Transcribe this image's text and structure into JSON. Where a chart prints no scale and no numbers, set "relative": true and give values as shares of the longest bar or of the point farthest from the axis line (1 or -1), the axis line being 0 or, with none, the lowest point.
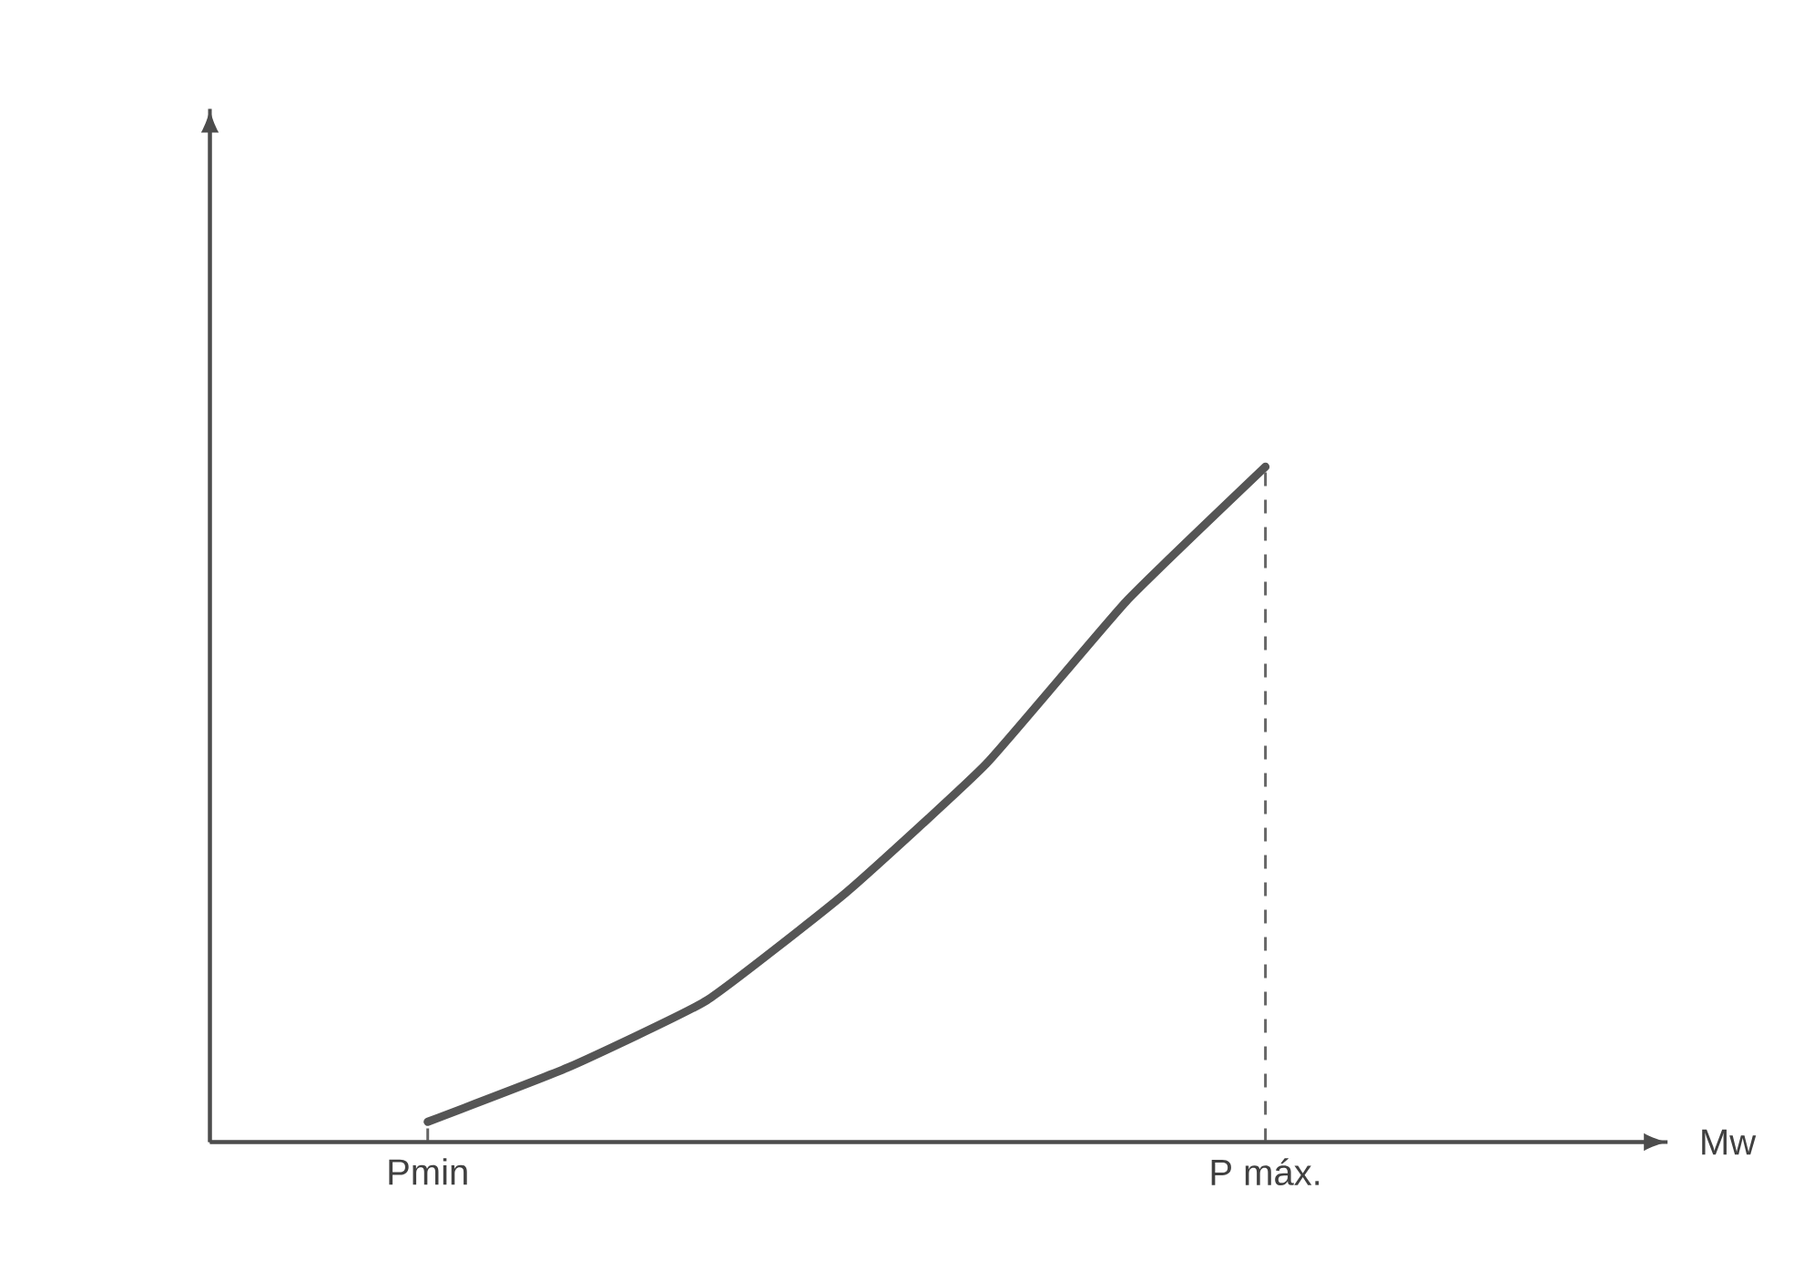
{
  "chart_data": {
    "type": "line",
    "relative": true,
    "annotations": [
      "Mw"
    ],
    "categories": [
      "Pmin",
      null,
      null,
      null,
      null,
      null,
      "P máx."
    ],
    "series": [
      {
        "color": "#555555",
        "values": [
          0.03,
          0.11,
          0.21,
          0.37,
          0.56,
          0.8,
          1
        ]
      }
    ],
    "marker": "none",
    "line_style": "solid"
  }
}
